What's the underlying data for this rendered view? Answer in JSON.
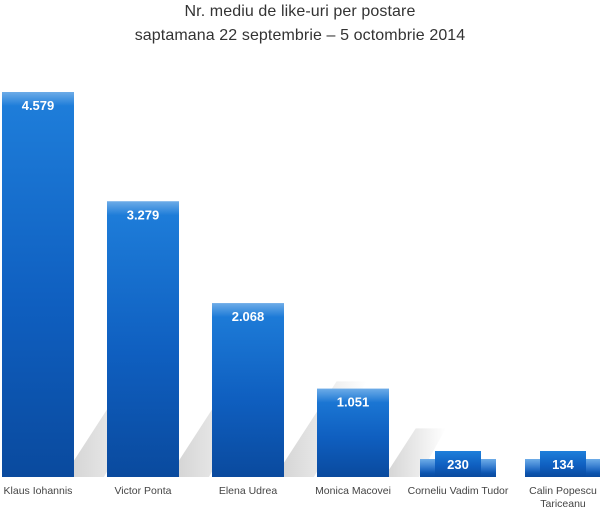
{
  "chart_data": {
    "type": "bar",
    "title": "Nr. mediu de like-uri  per postare",
    "subtitle": "saptamana 22 septembrie – 5 octombrie 2014",
    "categories": [
      "Klaus Iohannis",
      "Victor Ponta",
      "Elena Udrea",
      "Monica Macovei",
      "Corneliu Vadim Tudor",
      "Calin Popescu Tariceanu"
    ],
    "category_lines": [
      [
        "Klaus Iohannis"
      ],
      [
        "Victor Ponta"
      ],
      [
        "Elena Udrea"
      ],
      [
        "Monica Macovei"
      ],
      [
        "Corneliu Vadim Tudor"
      ],
      [
        "Calin Popescu",
        "Tariceanu"
      ]
    ],
    "values": [
      4579,
      3279,
      2068,
      1051,
      230,
      134
    ],
    "value_labels": [
      "4.579",
      "3.279",
      "2.068",
      "1.051",
      "230",
      "134"
    ],
    "xlabel": "",
    "ylabel": "",
    "ylim": [
      0,
      4579
    ],
    "grid": false,
    "legend": "none",
    "colors": {
      "bar_top": "#1f7fdb",
      "bar_mid": "#0f5fc0",
      "bar_bottom": "#0a4a9e",
      "shadow": "#c8c8c8"
    }
  }
}
